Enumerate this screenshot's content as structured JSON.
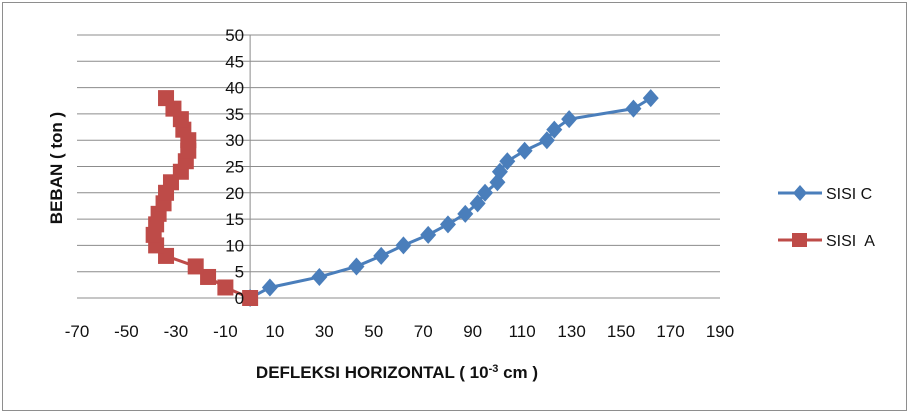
{
  "chart_data": {
    "type": "scatter",
    "xlabel": "DEFLEKSI HORIZONTAL ( 10",
    "xlabel_sup": "-3",
    "xlabel_tail": " cm )",
    "ylabel": "BEBAN ( ton )",
    "xlim": [
      -70,
      190
    ],
    "ylim": [
      0,
      50
    ],
    "xticks": [
      "-70",
      "-50",
      "-30",
      "-10",
      "10",
      "30",
      "50",
      "70",
      "90",
      "110",
      "130",
      "150",
      "170",
      "190"
    ],
    "yticks": [
      "0",
      "5",
      "10",
      "15",
      "20",
      "25",
      "30",
      "35",
      "40",
      "45",
      "50"
    ],
    "grid": "horizontal",
    "legend_position": "right",
    "series": [
      {
        "name": "SISI C",
        "color": "#4a7ebb",
        "marker": "diamond",
        "points": [
          [
            0,
            0
          ],
          [
            8,
            2
          ],
          [
            28,
            4
          ],
          [
            43,
            6
          ],
          [
            53,
            8
          ],
          [
            62,
            10
          ],
          [
            72,
            12
          ],
          [
            80,
            14
          ],
          [
            87,
            16
          ],
          [
            92,
            18
          ],
          [
            95,
            20
          ],
          [
            100,
            22
          ],
          [
            101,
            24
          ],
          [
            104,
            26
          ],
          [
            111,
            28
          ],
          [
            120,
            30
          ],
          [
            123,
            32
          ],
          [
            129,
            34
          ],
          [
            155,
            36
          ],
          [
            162,
            38
          ]
        ]
      },
      {
        "name": "SISI  A",
        "color": "#be4b48",
        "marker": "square",
        "points": [
          [
            0,
            0
          ],
          [
            -10,
            2
          ],
          [
            -17,
            4
          ],
          [
            -22,
            6
          ],
          [
            -34,
            8
          ],
          [
            -38,
            10
          ],
          [
            -39,
            12
          ],
          [
            -38,
            14
          ],
          [
            -37,
            16
          ],
          [
            -35,
            18
          ],
          [
            -34,
            20
          ],
          [
            -32,
            22
          ],
          [
            -28,
            24
          ],
          [
            -26,
            26
          ],
          [
            -25,
            28
          ],
          [
            -25,
            30
          ],
          [
            -27,
            32
          ],
          [
            -28,
            34
          ],
          [
            -31,
            36
          ],
          [
            -34,
            38
          ]
        ]
      }
    ]
  }
}
